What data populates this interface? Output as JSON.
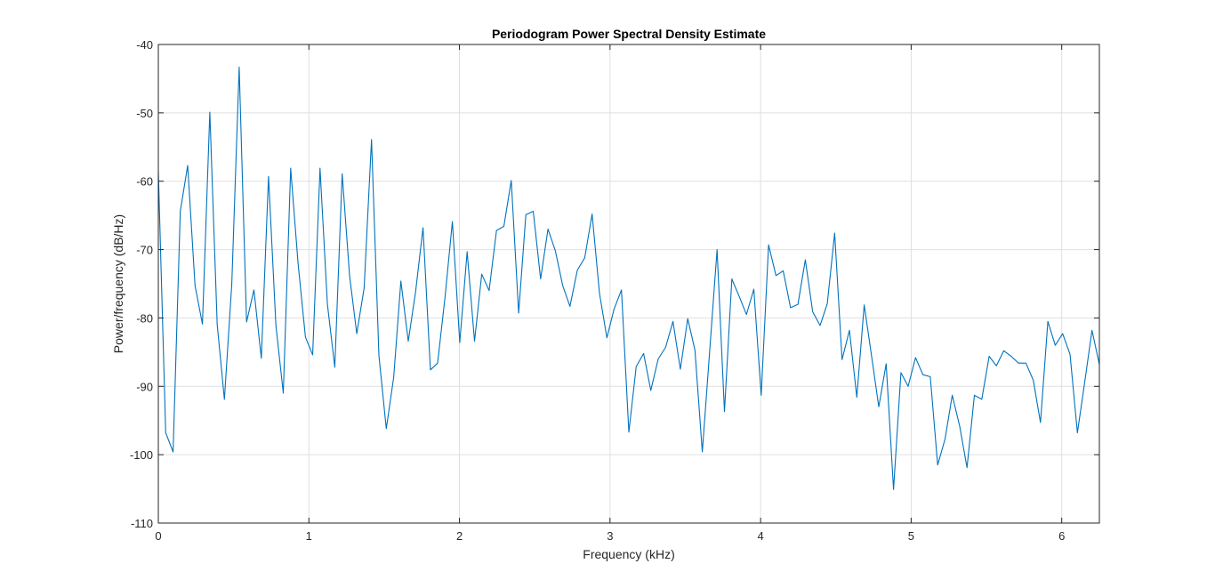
{
  "chart_data": {
    "type": "line",
    "title": "Periodogram Power Spectral Density Estimate",
    "xlabel": "Frequency (kHz)",
    "ylabel": "Power/frequency (dB/Hz)",
    "xlim": [
      0,
      6.25
    ],
    "ylim": [
      -110,
      -40
    ],
    "xticks": [
      0,
      1,
      2,
      3,
      4,
      5,
      6
    ],
    "yticks": [
      -40,
      -50,
      -60,
      -70,
      -80,
      -90,
      -100,
      -110
    ],
    "grid": true,
    "series_color": "#0072BD",
    "series": [
      {
        "x": [
          0,
          0.049,
          0.098,
          0.146,
          0.195,
          0.244,
          0.293,
          0.342,
          0.391,
          0.439,
          0.488,
          0.537,
          0.586,
          0.635,
          0.684,
          0.732,
          0.781,
          0.83,
          0.879,
          0.928,
          0.977,
          1.025,
          1.074,
          1.123,
          1.172,
          1.221,
          1.27,
          1.318,
          1.367,
          1.416,
          1.465,
          1.514,
          1.563,
          1.611,
          1.66,
          1.709,
          1.758,
          1.807,
          1.855,
          1.904,
          1.953,
          2.002,
          2.051,
          2.1,
          2.148,
          2.197,
          2.246,
          2.295,
          2.344,
          2.393,
          2.441,
          2.49,
          2.539,
          2.588,
          2.637,
          2.686,
          2.734,
          2.783,
          2.832,
          2.881,
          2.93,
          2.979,
          3.027,
          3.076,
          3.125,
          3.174,
          3.223,
          3.271,
          3.32,
          3.369,
          3.418,
          3.467,
          3.516,
          3.564,
          3.613,
          3.662,
          3.711,
          3.76,
          3.809,
          3.857,
          3.906,
          3.955,
          4.004,
          4.053,
          4.102,
          4.15,
          4.199,
          4.248,
          4.297,
          4.346,
          4.395,
          4.443,
          4.492,
          4.541,
          4.59,
          4.639,
          4.688,
          4.736,
          4.785,
          4.834,
          4.883,
          4.932,
          4.98,
          5.029,
          5.078,
          5.127,
          5.176,
          5.225,
          5.273,
          5.322,
          5.371,
          5.42,
          5.469,
          5.518,
          5.566,
          5.615,
          5.664,
          5.713,
          5.762,
          5.811,
          5.859,
          5.908,
          5.957,
          6.006,
          6.055,
          6.104,
          6.152,
          6.201,
          6.25
        ],
        "y": [
          -58.5,
          -96.8,
          -99.6,
          -64.4,
          -57.7,
          -75.3,
          -80.9,
          -49.9,
          -81.0,
          -91.9,
          -75.0,
          -43.3,
          -80.6,
          -75.9,
          -85.9,
          -59.3,
          -81.1,
          -91.0,
          -58.1,
          -72.0,
          -82.8,
          -85.4,
          -58.1,
          -78.0,
          -87.2,
          -58.9,
          -73.8,
          -82.3,
          -75.6,
          -53.9,
          -85.5,
          -96.2,
          -88.7,
          -74.6,
          -83.4,
          -76.1,
          -66.8,
          -87.6,
          -86.6,
          -77.0,
          -65.9,
          -83.6,
          -70.3,
          -83.4,
          -73.6,
          -76.0,
          -67.2,
          -66.6,
          -59.9,
          -79.3,
          -64.9,
          -64.4,
          -74.3,
          -67.0,
          -70.2,
          -75.3,
          -78.3,
          -73.0,
          -71.2,
          -64.8,
          -76.4,
          -82.9,
          -78.7,
          -75.9,
          -96.7,
          -87.1,
          -85.2,
          -90.6,
          -86.0,
          -84.3,
          -80.5,
          -87.5,
          -80.1,
          -84.7,
          -99.6,
          -84.8,
          -70.0,
          -93.7,
          -74.3,
          -76.8,
          -79.5,
          -75.8,
          -91.3,
          -69.3,
          -73.8,
          -73.1,
          -78.5,
          -78.0,
          -71.5,
          -79.1,
          -81.1,
          -77.9,
          -67.6,
          -86.1,
          -81.8,
          -91.6,
          -78.1,
          -85.4,
          -93.0,
          -86.7,
          -105.1,
          -88.0,
          -90.0,
          -85.8,
          -88.3,
          -88.6,
          -101.5,
          -97.7,
          -91.3,
          -95.8,
          -101.9,
          -91.3,
          -91.9,
          -85.6,
          -87.0,
          -84.8,
          -85.6,
          -86.6,
          -86.6,
          -89.1,
          -95.3,
          -80.5,
          -84.0,
          -82.3,
          -85.3,
          -96.8,
          -89.5,
          -81.8,
          -86.8
        ]
      }
    ]
  }
}
